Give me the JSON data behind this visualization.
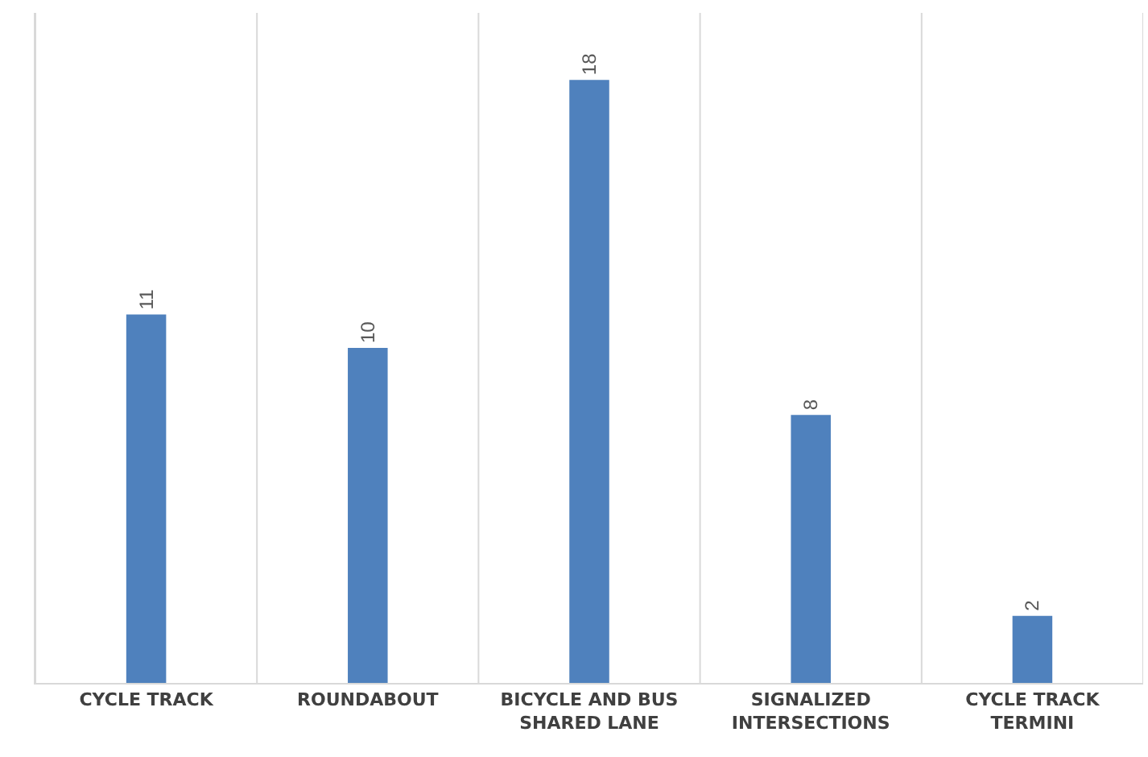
{
  "chart_data": {
    "type": "bar",
    "categories": [
      "CYCLE TRACK",
      "ROUNDABOUT",
      "BICYCLE AND BUS\nSHARED LANE",
      "SIGNALIZED\nINTERSECTIONS",
      "CYCLE TRACK\nTERMINI"
    ],
    "values": [
      11,
      10,
      18,
      8,
      2
    ],
    "color": "#4f81bd",
    "ylim": [
      0,
      20
    ],
    "data_labels": true,
    "grid": "x",
    "tick_labels": "x"
  }
}
